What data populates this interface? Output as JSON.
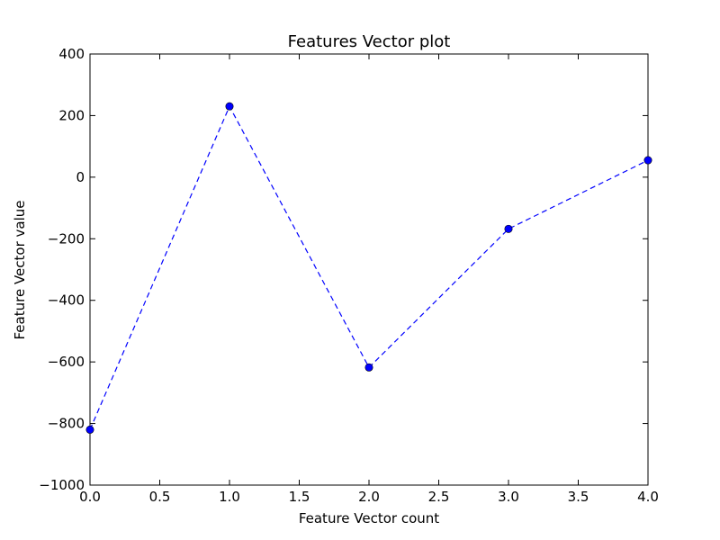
{
  "chart_data": {
    "type": "line",
    "title": "Features Vector plot",
    "xlabel": "Feature Vector count",
    "ylabel": "Feature Vector value",
    "xlim": [
      0.0,
      4.0
    ],
    "ylim": [
      -1000,
      400
    ],
    "x_ticks": [
      "0.0",
      "0.5",
      "1.0",
      "1.5",
      "2.0",
      "2.5",
      "3.0",
      "3.5",
      "4.0"
    ],
    "y_ticks": [
      "400",
      "200",
      "0",
      "−200",
      "−400",
      "−600",
      "−800",
      "−1000"
    ],
    "grid": false,
    "series": [
      {
        "x": [
          0,
          1,
          2,
          3,
          4
        ],
        "y": [
          -820,
          230,
          -618,
          -168,
          55
        ],
        "color": "#0000ff",
        "line_style": "dashed",
        "marker": "circle"
      }
    ]
  }
}
